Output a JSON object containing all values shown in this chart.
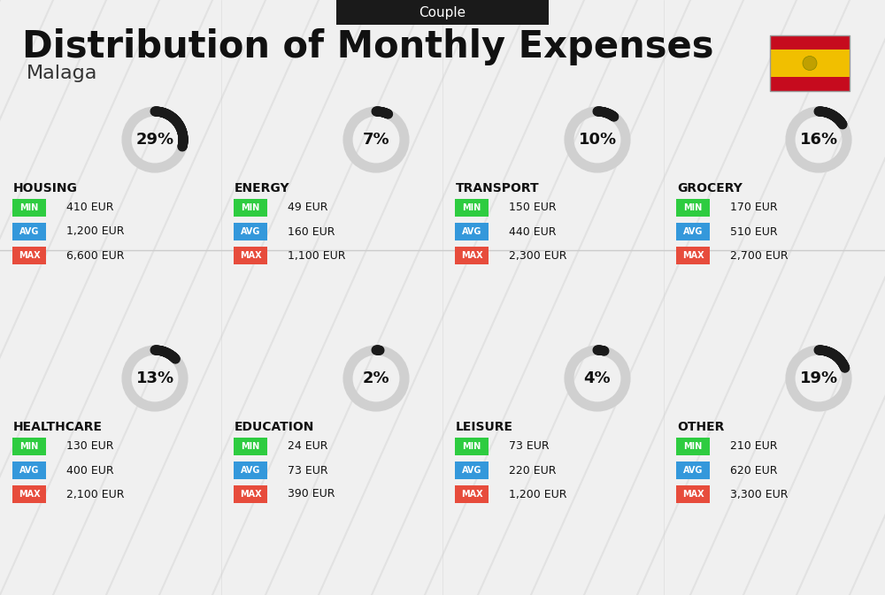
{
  "title": "Distribution of Monthly Expenses",
  "subtitle": "Couple",
  "city": "Malaga",
  "background_color": "#f0f0f0",
  "header_bg": "#1a1a1a",
  "header_text_color": "#ffffff",
  "categories": [
    {
      "name": "HOUSING",
      "pct": 29,
      "min_val": "410 EUR",
      "avg_val": "1,200 EUR",
      "max_val": "6,600 EUR",
      "row": 0,
      "col": 0
    },
    {
      "name": "ENERGY",
      "pct": 7,
      "min_val": "49 EUR",
      "avg_val": "160 EUR",
      "max_val": "1,100 EUR",
      "row": 0,
      "col": 1
    },
    {
      "name": "TRANSPORT",
      "pct": 10,
      "min_val": "150 EUR",
      "avg_val": "440 EUR",
      "max_val": "2,300 EUR",
      "row": 0,
      "col": 2
    },
    {
      "name": "GROCERY",
      "pct": 16,
      "min_val": "170 EUR",
      "avg_val": "510 EUR",
      "max_val": "2,700 EUR",
      "row": 0,
      "col": 3
    },
    {
      "name": "HEALTHCARE",
      "pct": 13,
      "min_val": "130 EUR",
      "avg_val": "400 EUR",
      "max_val": "2,100 EUR",
      "row": 1,
      "col": 0
    },
    {
      "name": "EDUCATION",
      "pct": 2,
      "min_val": "24 EUR",
      "avg_val": "73 EUR",
      "max_val": "390 EUR",
      "row": 1,
      "col": 1
    },
    {
      "name": "LEISURE",
      "pct": 4,
      "min_val": "73 EUR",
      "avg_val": "220 EUR",
      "max_val": "1,200 EUR",
      "row": 1,
      "col": 2
    },
    {
      "name": "OTHER",
      "pct": 19,
      "min_val": "210 EUR",
      "avg_val": "620 EUR",
      "max_val": "3,300 EUR",
      "row": 1,
      "col": 3
    }
  ],
  "min_color": "#2ecc40",
  "avg_color": "#3498db",
  "max_color": "#e74c3c",
  "donut_dark": "#1a1a1a",
  "donut_light": "#d0d0d0",
  "label_text_color": "#ffffff",
  "cat_name_color": "#111111",
  "value_text_color": "#111111",
  "flag_colors": [
    "#c60b1e",
    "#f1bf00",
    "#c60b1e"
  ],
  "flag_proportions": [
    0.25,
    0.5,
    0.25
  ]
}
